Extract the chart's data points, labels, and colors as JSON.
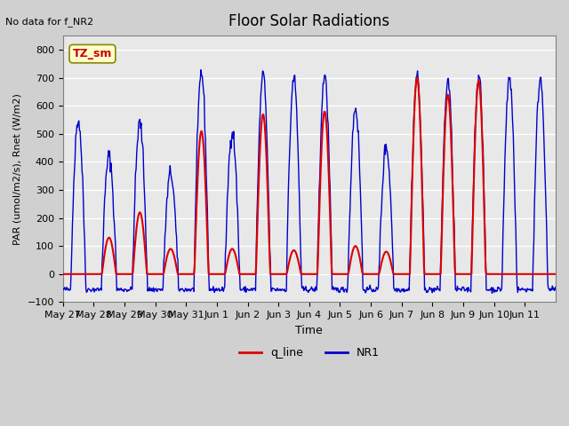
{
  "title": "Floor Solar Radiations",
  "xlabel": "Time",
  "ylabel": "PAR (umol/m2/s), Rnet (W/m2)",
  "ylim": [
    -100,
    850
  ],
  "yticks": [
    -100,
    0,
    100,
    200,
    300,
    400,
    500,
    600,
    700,
    800
  ],
  "annotation_text": "No data for f_NR2",
  "box_label": "TZ_sm",
  "legend_labels": [
    "q_line",
    "NR1"
  ],
  "legend_colors": [
    "#dd0000",
    "#0000cc"
  ],
  "n_days": 16,
  "xtick_labels": [
    "May 27",
    "May 28",
    "May 29",
    "May 30",
    "May 31",
    "Jun 1",
    "Jun 2",
    "Jun 3",
    "Jun 4",
    "Jun 5",
    "Jun 6",
    "Jun 7",
    "Jun 8",
    "Jun 9",
    "Jun 10",
    "Jun 11"
  ],
  "bg_color": "#d0d0d0",
  "plot_bg_color": "#e8e8e8",
  "grid_color": "white",
  "red_color": "#dd0000",
  "blue_color": "#0000cc",
  "red_peaks": [
    0,
    130,
    220,
    90,
    510,
    90,
    570,
    85,
    580,
    100,
    80,
    700,
    640,
    690,
    0,
    0
  ],
  "blue_peaks": [
    550,
    420,
    540,
    360,
    720,
    510,
    710,
    700,
    710,
    595,
    455,
    710,
    690,
    710,
    700,
    700
  ]
}
